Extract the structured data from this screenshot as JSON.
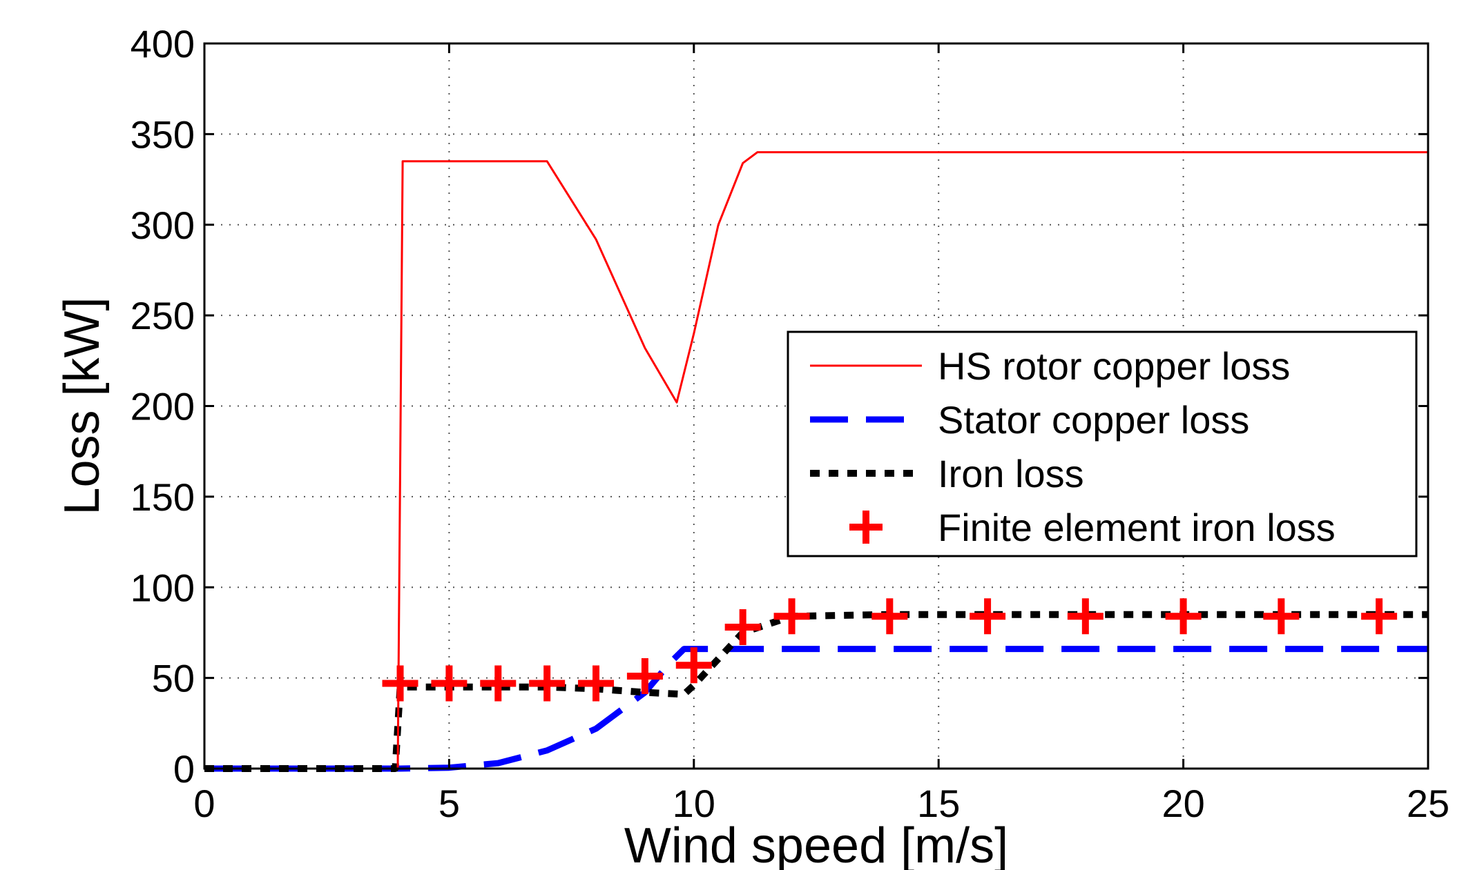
{
  "chart_data": {
    "type": "line",
    "title": "",
    "xlabel": "Wind speed [m/s]",
    "ylabel": "Loss [kW]",
    "xlim": [
      0,
      25
    ],
    "ylim": [
      0,
      400
    ],
    "xticks": [
      0,
      5,
      10,
      15,
      20,
      25
    ],
    "yticks": [
      0,
      50,
      100,
      150,
      200,
      250,
      300,
      350,
      400
    ],
    "grid": true,
    "legend_position": "right",
    "series": [
      {
        "name": "HS rotor copper loss",
        "style": "solid",
        "color": "#ff0000",
        "x": [
          0,
          3.95,
          4.05,
          7,
          8,
          9,
          9.65,
          10,
          10.5,
          11,
          11.3,
          12,
          25
        ],
        "y": [
          0,
          0,
          335,
          335,
          292,
          232,
          202,
          240,
          300,
          334,
          340,
          340,
          340
        ]
      },
      {
        "name": "Stator copper loss",
        "style": "dashed",
        "color": "#0000ff",
        "x": [
          0,
          4,
          5,
          6,
          7,
          8,
          9,
          9.5,
          9.8,
          10,
          11,
          25
        ],
        "y": [
          0,
          0,
          0.5,
          3,
          10,
          22,
          42,
          58,
          66,
          66,
          66,
          66
        ]
      },
      {
        "name": "Iron loss",
        "style": "dotted",
        "color": "#000000",
        "x": [
          0,
          3.9,
          4,
          5,
          6,
          7,
          8,
          9,
          9.8,
          10,
          11,
          12,
          14,
          25
        ],
        "y": [
          0,
          0,
          45,
          45,
          45,
          45,
          44,
          42,
          41,
          46,
          75,
          84,
          85,
          85
        ]
      },
      {
        "name": "Finite element iron loss",
        "style": "marker-plus",
        "color": "#ff0000",
        "x": [
          4,
          5,
          6,
          7,
          8,
          9,
          10,
          11,
          12,
          14,
          16,
          18,
          20,
          22,
          24
        ],
        "y": [
          47,
          47,
          47,
          47,
          47,
          51,
          57,
          78,
          84,
          84,
          84,
          84,
          84,
          84,
          84
        ]
      }
    ]
  }
}
